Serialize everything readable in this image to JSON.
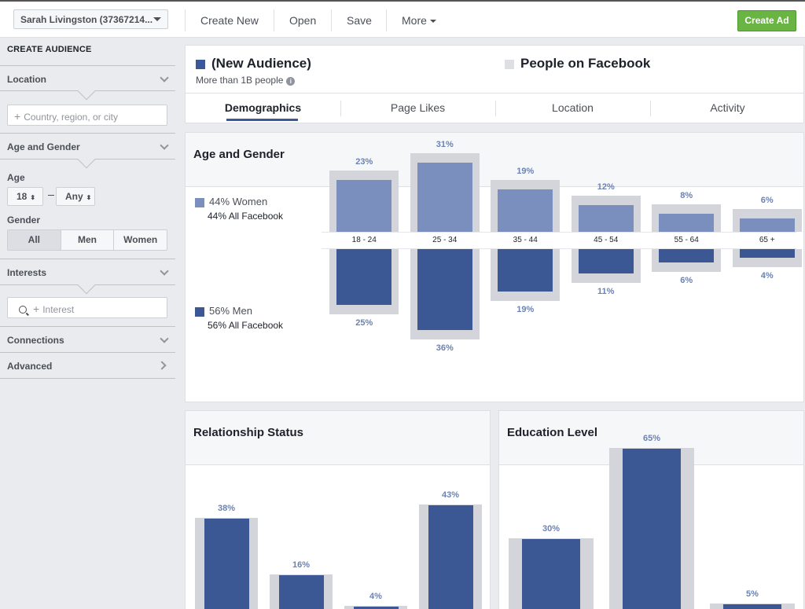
{
  "topbar": {
    "account": "Sarah Livingston (37367214...",
    "menu": [
      "Create New",
      "Open",
      "Save",
      "More"
    ],
    "create_ad": "Create Ad"
  },
  "sidebar": {
    "title": "CREATE AUDIENCE",
    "location": {
      "heading": "Location",
      "placeholder": "Country, region, or city"
    },
    "age_gender": {
      "heading": "Age and Gender",
      "age_label": "Age",
      "age_min": "18",
      "age_max": "Any",
      "gender_label": "Gender",
      "gender_options": [
        "All",
        "Men",
        "Women"
      ],
      "gender_selected": "All"
    },
    "interests": {
      "heading": "Interests",
      "placeholder": "Interest"
    },
    "connections": "Connections",
    "advanced": "Advanced"
  },
  "header": {
    "audience_title": "(New Audience)",
    "audience_sub": "More than 1B people",
    "comparison_title": "People on Facebook",
    "tabs": [
      "Demographics",
      "Page Likes",
      "Location",
      "Activity"
    ],
    "active_tab": "Demographics",
    "colors": {
      "audience": "#3b5998",
      "comparison": "#dddfe2"
    }
  },
  "age_gender_card": {
    "title": "Age and Gender",
    "women": {
      "label": "44% Women",
      "sub": "44% All Facebook"
    },
    "men": {
      "label": "56% Men",
      "sub": "56% All Facebook"
    }
  },
  "relationship_card": {
    "title": "Relationship Status"
  },
  "education_card": {
    "title": "Education Level"
  },
  "chart_data": [
    {
      "type": "bar",
      "title": "Age and Gender",
      "categories": [
        "18 - 24",
        "25 - 34",
        "35 - 44",
        "45 - 54",
        "55 - 64",
        "65 +"
      ],
      "series": [
        {
          "name": "44% Women",
          "values": [
            23,
            31,
            19,
            12,
            8,
            6
          ],
          "color": "#7b8fbf"
        },
        {
          "name": "56% Men",
          "values": [
            25,
            36,
            19,
            11,
            6,
            4
          ],
          "color": "#3b5794"
        }
      ],
      "value_suffix": "%"
    },
    {
      "type": "bar",
      "title": "Relationship Status",
      "values": [
        38,
        16,
        4,
        43
      ],
      "value_suffix": "%"
    },
    {
      "type": "bar",
      "title": "Education Level",
      "values": [
        30,
        65,
        5
      ],
      "value_suffix": "%"
    }
  ]
}
